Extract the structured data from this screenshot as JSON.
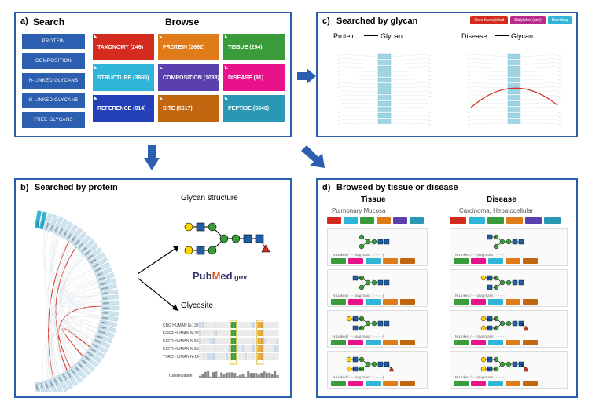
{
  "panels": {
    "a": {
      "label": "a)",
      "search_title": "Search",
      "browse_title": "Browse"
    },
    "b": {
      "label": "b)",
      "title": "Searched by protein",
      "glycan_label": "Glycan structure",
      "glycosite_label": "Glycosite",
      "pubmed_pub": "Pub",
      "pubmed_m": "M",
      "pubmed_ed": "ed",
      "pubmed_gov": ".gov"
    },
    "c": {
      "label": "c)",
      "title": "Searched by glycan",
      "protein": "Protein",
      "glycan1": "Glycan",
      "disease": "Disease",
      "glycan2": "Glycan"
    },
    "d": {
      "label": "d)",
      "title": "Browsed by tissue or disease",
      "tissue": "Tissue",
      "disease": "Disease",
      "tissue_sub": "Pulmonary Mucosa",
      "disease_sub": "Carcinoma, Hepatocellular"
    }
  },
  "colors": {
    "border": "#2d5fb0",
    "search_btn": "#2d5fb0",
    "taxonomy": "#d52b1e",
    "protein": "#e07b1a",
    "tissue": "#3a9b3a",
    "structure": "#2fb5d8",
    "composition": "#5a3fae",
    "disease": "#e8138a",
    "reference": "#2440b8",
    "site": "#c1660e",
    "peptide": "#2a97b5",
    "legend_core": "#d52b1e",
    "legend_sial": "#b82b8a",
    "legend_bisect": "#2fb5d8",
    "arrow_fill": "#2d5fb0",
    "gal": "#ffd400",
    "glcnac": "#1e5fa8",
    "man": "#3a9b3a",
    "fuc": "#d52b1e",
    "sia": "#a03da8",
    "tag_red": "#d52b1e",
    "tag_blue": "#2fb5d8",
    "tag_purple": "#5a3fae",
    "tag_green": "#3a9b3a",
    "tag_pink": "#e8138a",
    "tag_orange1": "#e07b1a",
    "tag_orange2": "#c1660e",
    "tag_teal": "#2a97b5"
  },
  "search_buttons": [
    "PROTEIN",
    "COMPOSITION",
    "N-LINKED GLYCANS",
    "O-LINKED GLYCANS",
    "FREE GLYCANS"
  ],
  "browse_buttons": [
    [
      {
        "label": "TAXONOMY (246)",
        "color": "taxonomy"
      },
      {
        "label": "PROTEIN (2662)",
        "color": "protein"
      },
      {
        "label": "TISSUE (254)",
        "color": "tissue"
      }
    ],
    [
      {
        "label": "STRUCTURE (3665)",
        "color": "structure"
      },
      {
        "label": "COMPOSITION (1038)",
        "color": "composition"
      },
      {
        "label": "DISEASE (91)",
        "color": "disease"
      }
    ],
    [
      {
        "label": "REFERENCE (914)",
        "color": "reference"
      },
      {
        "label": "SITE (5617)",
        "color": "site"
      },
      {
        "label": "PEPTIDE (5346)",
        "color": "peptide"
      }
    ]
  ],
  "legend_c": [
    {
      "label": "Core-fucosylated",
      "color": "legend_core"
    },
    {
      "label": "Sialylated (any)",
      "color": "legend_sial"
    },
    {
      "label": "Bisecting",
      "color": "legend_bisect"
    }
  ],
  "d_tissue_headers": [
    {
      "label": "",
      "color": "tag_red"
    },
    {
      "label": "",
      "color": "tag_blue"
    },
    {
      "label": "",
      "color": "tag_green"
    },
    {
      "label": "",
      "color": "tag_orange1"
    },
    {
      "label": "",
      "color": "tag_purple"
    },
    {
      "label": "",
      "color": "tag_teal"
    }
  ],
  "seq_labels": [
    "CBG HUMAN N-138",
    "EGFR HUMAN N-328",
    "EGFR HUMAN N-56",
    "EGFR HUMAN N-599",
    "TYRO HUMAN N-142"
  ],
  "seq_conservation": "Conservation"
}
